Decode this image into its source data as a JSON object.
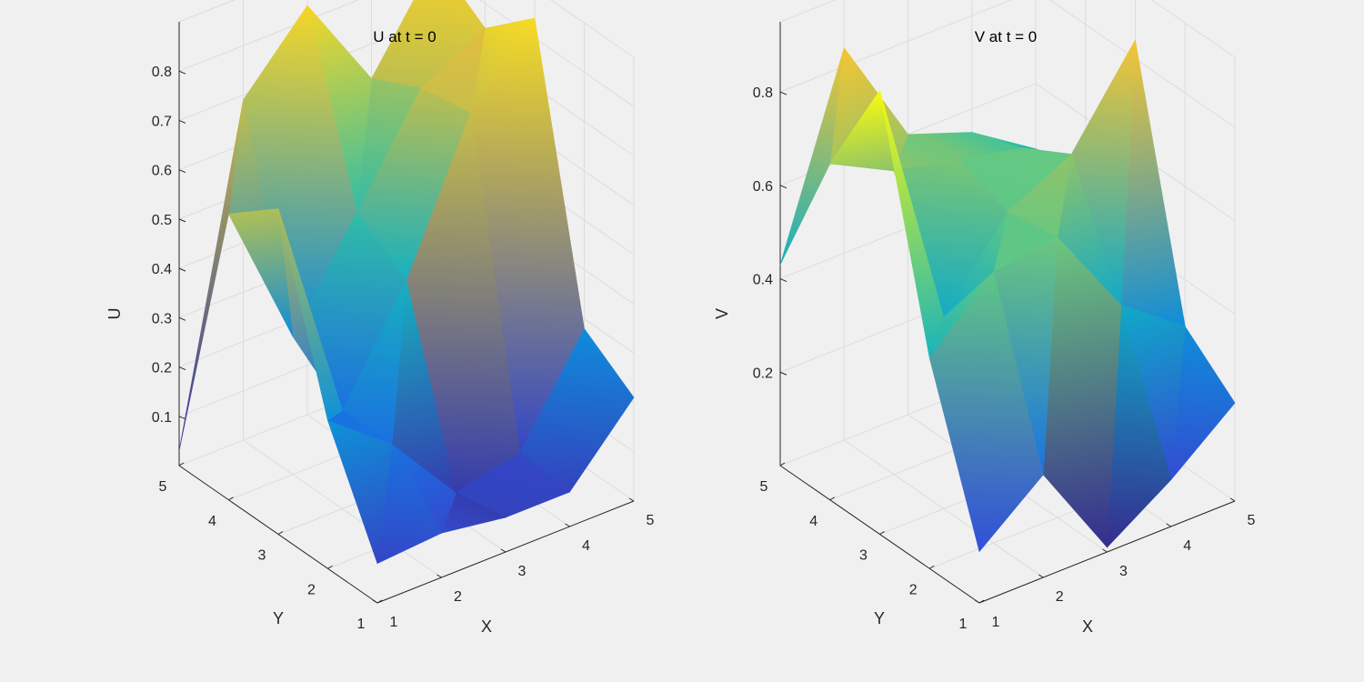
{
  "figure": {
    "background": "#f0f0f0"
  },
  "chart_data": [
    {
      "type": "surface",
      "title": "U at t = 0",
      "xlabel": "X",
      "ylabel": "Y",
      "zlabel": "U",
      "x": [
        1,
        2,
        3,
        4,
        5
      ],
      "y": [
        1,
        2,
        3,
        4,
        5
      ],
      "xlim": [
        1,
        5
      ],
      "ylim": [
        1,
        5
      ],
      "zlim": [
        0,
        0.9
      ],
      "xticks": [
        "1",
        "2",
        "3",
        "4",
        "5"
      ],
      "yticks": [
        "1",
        "2",
        "3",
        "4",
        "5"
      ],
      "zticks": [
        {
          "v": 0.1,
          "label": "0.1"
        },
        {
          "v": 0.2,
          "label": "0.2"
        },
        {
          "v": 0.3,
          "label": "0.3"
        },
        {
          "v": 0.4,
          "label": "0.4"
        },
        {
          "v": 0.5,
          "label": "0.5"
        },
        {
          "v": 0.6,
          "label": "0.6"
        },
        {
          "v": 0.7,
          "label": "0.7"
        },
        {
          "v": 0.8,
          "label": "0.8"
        }
      ],
      "colormap": "parula",
      "grid": true,
      "z": [
        [
          0.08,
          0.09,
          0.07,
          0.07,
          0.21
        ],
        [
          0.3,
          0.2,
          0.05,
          0.08,
          0.28
        ],
        [
          0.66,
          0.2,
          0.41,
          0.7,
          0.84
        ],
        [
          0.58,
          0.28,
          0.48,
          0.68,
          0.75
        ],
        [
          0.03,
          0.69,
          0.83,
          0.63,
          0.82
        ]
      ]
    },
    {
      "type": "surface",
      "title": "V at t = 0",
      "xlabel": "X",
      "ylabel": "Y",
      "zlabel": "V",
      "x": [
        1,
        2,
        3,
        4,
        5
      ],
      "y": [
        1,
        2,
        3,
        4,
        5
      ],
      "xlim": [
        1,
        5
      ],
      "ylim": [
        1,
        5
      ],
      "zlim": [
        0,
        0.95
      ],
      "xticks": [
        "1",
        "2",
        "3",
        "4",
        "5"
      ],
      "yticks": [
        "1",
        "2",
        "3",
        "4",
        "5"
      ],
      "zticks": [
        {
          "v": 0.2,
          "label": "0.2"
        },
        {
          "v": 0.4,
          "label": "0.4"
        },
        {
          "v": 0.6,
          "label": "0.6"
        },
        {
          "v": 0.8,
          "label": "0.8"
        }
      ],
      "colormap": "parula",
      "grid": true,
      "z": [
        [
          0.11,
          0.22,
          0.01,
          0.1,
          0.21
        ],
        [
          0.45,
          0.58,
          0.6,
          0.4,
          0.3
        ],
        [
          0.95,
          0.41,
          0.58,
          0.65,
          0.84
        ],
        [
          0.72,
          0.65,
          0.62,
          0.59,
          0.5
        ],
        [
          0.43,
          0.84,
          0.6,
          0.55,
          0.46
        ]
      ]
    }
  ]
}
